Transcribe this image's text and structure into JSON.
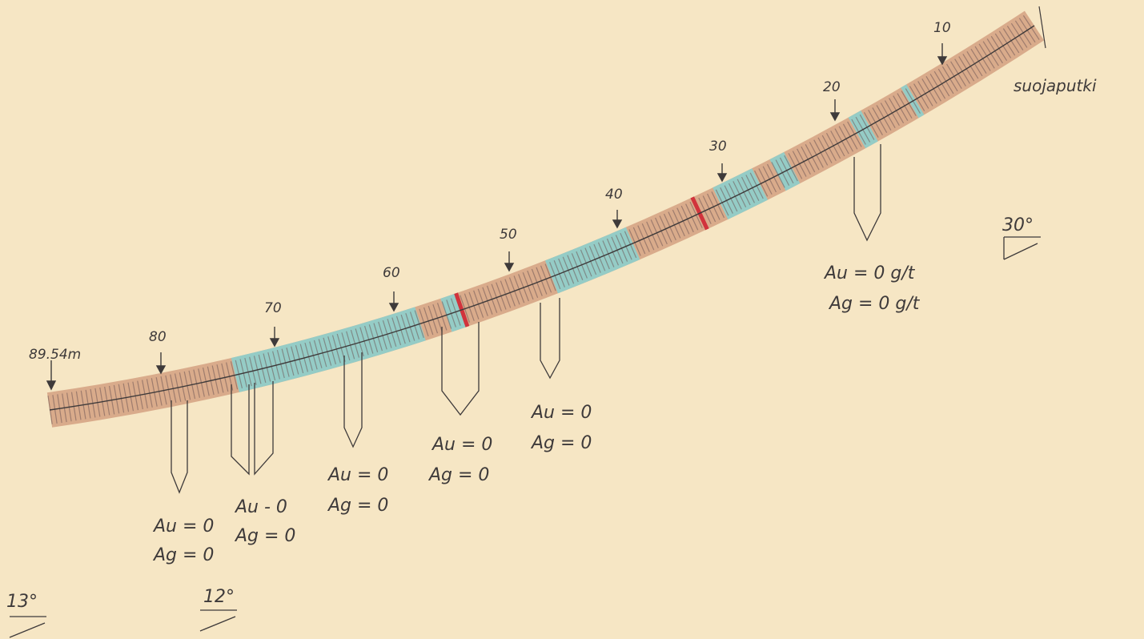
{
  "colors": {
    "paper": "#f6e6c4",
    "rock": "#d9ab8b",
    "altered": "#95ccc6",
    "vein": "#d1333c",
    "ink": "#3e3a3a"
  },
  "end_depth_label": "89.54m",
  "casing_label": "suojaputki",
  "depth_ticks": [
    {
      "label": "10"
    },
    {
      "label": "20"
    },
    {
      "label": "30"
    },
    {
      "label": "40"
    },
    {
      "label": "50"
    },
    {
      "label": "60"
    },
    {
      "label": "70"
    },
    {
      "label": "80"
    }
  ],
  "dip_angles": [
    {
      "label": "30°"
    },
    {
      "label": "12°"
    },
    {
      "label": "13°"
    }
  ],
  "assays": [
    {
      "au": "Au = 0",
      "ag": "Ag = 0"
    },
    {
      "au": "Au - 0",
      "ag": "Ag = 0"
    },
    {
      "au": "Au = 0",
      "ag": "Ag = 0"
    },
    {
      "au": "Au = 0",
      "ag": "Ag = 0"
    },
    {
      "au": "Au = 0",
      "ag": "Ag = 0"
    },
    {
      "au": "Au = 0 g/t",
      "ag": "Ag = 0 g/t"
    }
  ]
}
